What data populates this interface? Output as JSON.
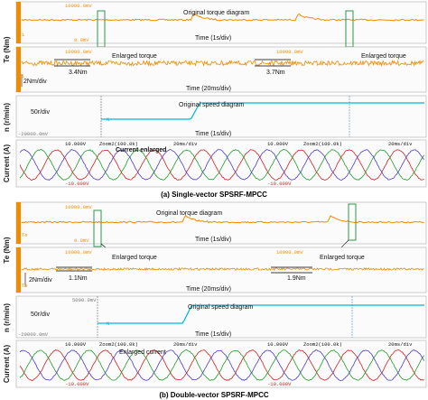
{
  "figure": {
    "captions": [
      "(a) Single-vector SPSRF-MPCC",
      "(b) Double-vector SPSRF-MPCC"
    ]
  },
  "colors": {
    "torque": "#f08c00",
    "speed": "#00b8d8",
    "phase_a": "#d22020",
    "phase_b": "#1f9e2a",
    "phase_c": "#4f3cc9",
    "highlight_box": "#2a9a4a"
  },
  "chart_data": [
    {
      "id": "a",
      "caption": "(a) Single-vector SPSRF-MPCC",
      "type": "line",
      "panels": {
        "torque": {
          "ylabel": "Te (Nm)",
          "title": "Original torque diagram",
          "time_div": "Time (1s/div)",
          "scale_top": "10000.0mV",
          "scale_bottom": "0.0mV",
          "channel": "1",
          "step_events_s": [
            4.2,
            6.8
          ]
        },
        "enlarged_torque": {
          "label": "Enlarged torque",
          "scale_left_top": "10000.0mV",
          "scale_right_top": "10000.0mV",
          "ripple_left": "3.4Nm",
          "ripple_right": "3.7Nm",
          "vertical_div": "2Nm/div",
          "time_div": "Time (20ms/div)",
          "channel": "1"
        },
        "speed": {
          "ylabel": "n (r/min)",
          "title": "Original speed diagram",
          "vertical_div": "50r/div",
          "time_div": "Time (1s/div)",
          "scale_bottom": "-20000.0mV",
          "channel": "N",
          "step_events_s": [
            4.2,
            6.8
          ]
        },
        "current": {
          "ylabel": "Current (A)",
          "label": "Current enlarged",
          "scale_top": "10.000V",
          "scale_bottom": "-10.000V",
          "zoom_label": "Zoom2(100.0k)",
          "time_div": "20ms/div"
        }
      }
    },
    {
      "id": "b",
      "caption": "(b) Double-vector SPSRF-MPCC",
      "type": "line",
      "panels": {
        "torque": {
          "ylabel": "Te (Nm)",
          "title": "Original torque diagram",
          "time_div": "Time (1s/div)",
          "scale_top": "10000.0mV",
          "scale_bottom": "0.0mV",
          "channel": "Te",
          "step_events_s": [
            4.0,
            7.6
          ]
        },
        "enlarged_torque": {
          "label": "Enlarged torque",
          "scale_left_top": "10000.0mV",
          "scale_right_top": "10000.0mV",
          "ripple_left": "1.1Nm",
          "ripple_right": "1.9Nm",
          "vertical_div": "2Nm/div",
          "time_div": "Time (20ms/div)",
          "channel": "Te"
        },
        "speed": {
          "ylabel": "n (r/min)",
          "title": "Original speed diagram",
          "vertical_div": "50r/div",
          "time_div": "Time (1s/div)",
          "scale_top": "5000.0mV",
          "scale_bottom": "-20000.0mV",
          "channel": "N",
          "step_events_s": [
            4.0,
            7.6
          ]
        },
        "current": {
          "ylabel": "Current (A)",
          "label": "Enlarged current",
          "scale_top": "10.000V",
          "scale_bottom": "-10.000V",
          "zoom_label": "Zoom2(100.0k)",
          "time_div": "20ms/div"
        }
      }
    }
  ]
}
